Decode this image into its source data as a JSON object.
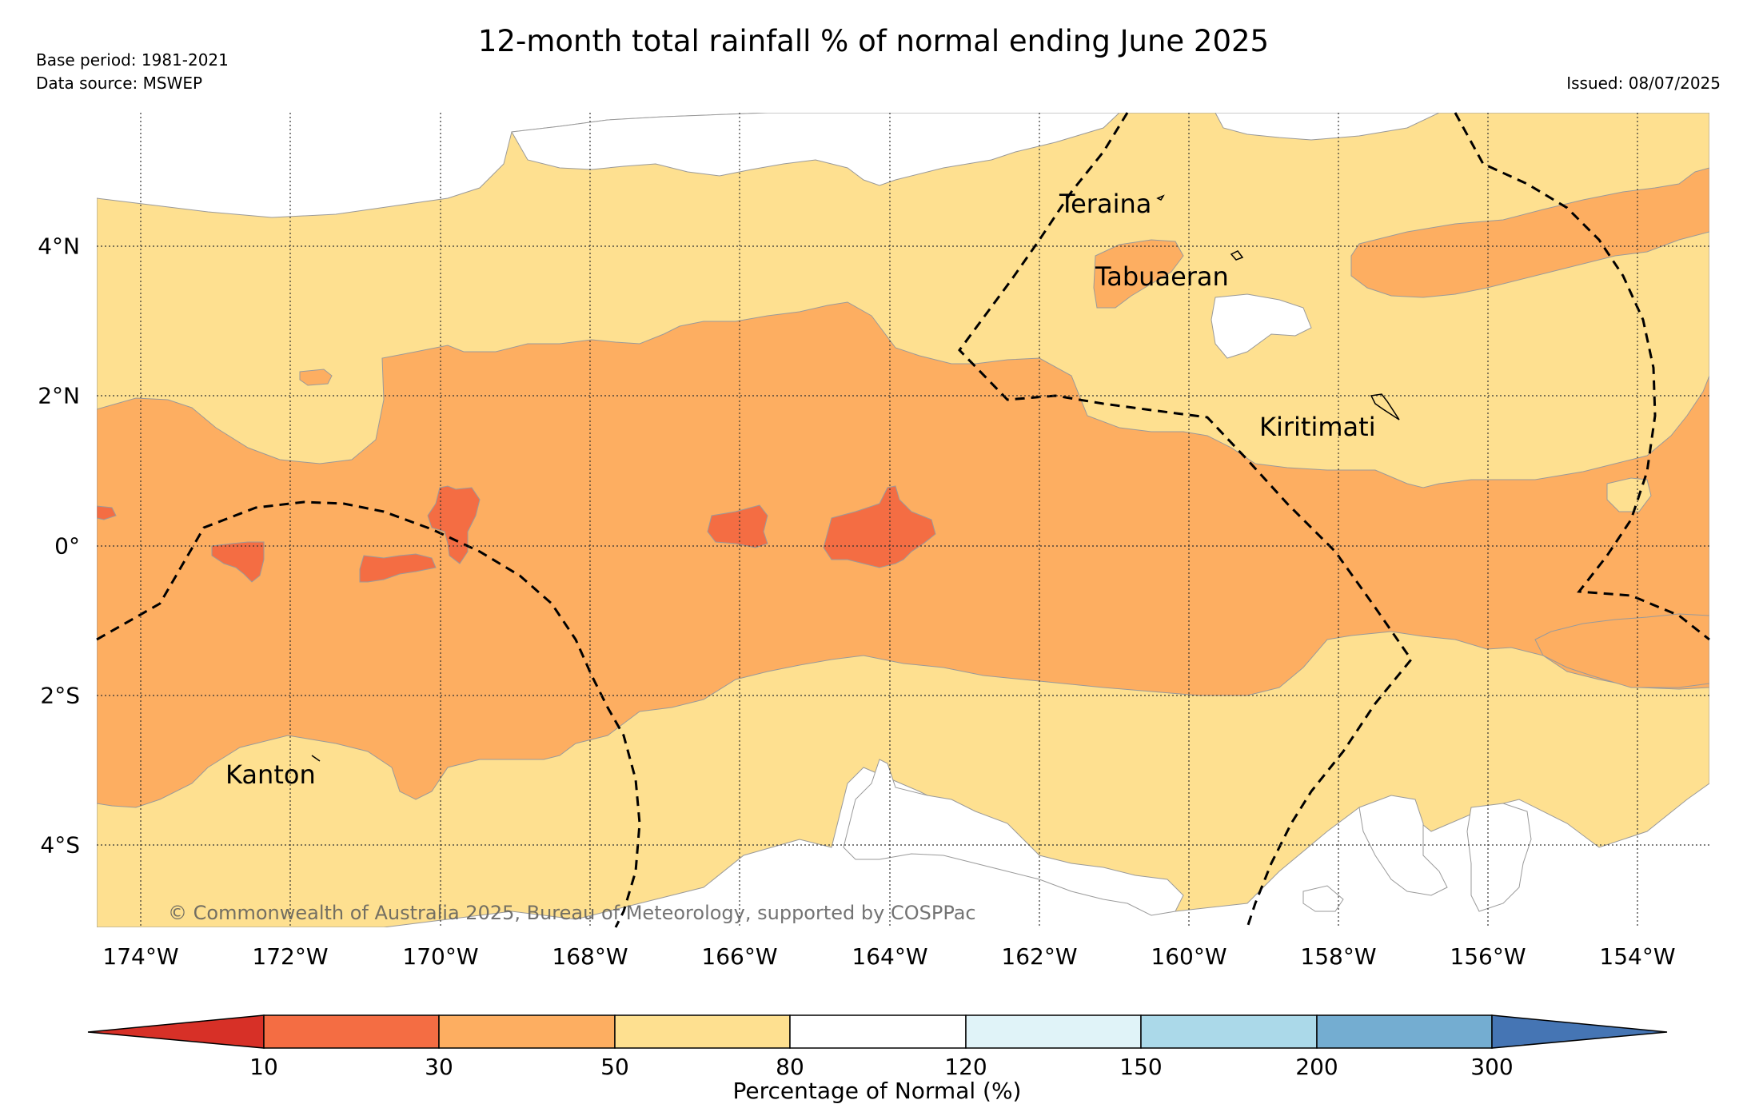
{
  "title": "12-month total rainfall % of normal ending June 2025",
  "base_period": "Base period: 1981-2021",
  "data_source": "Data source: MSWEP",
  "issued": "Issued: 08/07/2025",
  "copyright": "© Commonwealth of Australia 2025, Bureau of Meteorology, supported by COSPPac",
  "x_ticks": [
    "174°W",
    "172°W",
    "170°W",
    "168°W",
    "166°W",
    "164°W",
    "162°W",
    "160°W",
    "158°W",
    "156°W",
    "154°W"
  ],
  "y_ticks": [
    "4°N",
    "2°N",
    "0°",
    "2°S",
    "4°S"
  ],
  "places": {
    "teraina": "Teraina",
    "tabuaeran": "Tabuaeran",
    "kiritimati": "Kiritimati",
    "kanton": "Kanton"
  },
  "colorbar": {
    "label": "Percentage of Normal (%)",
    "ticks": [
      "10",
      "30",
      "50",
      "80",
      "120",
      "150",
      "200",
      "300"
    ],
    "colors": {
      "under": "#d73027",
      "c10_30": "#f46d43",
      "c30_50": "#fdae61",
      "c50_80": "#fee090",
      "c80_120": "#ffffff",
      "c120_150": "#e0f3f8",
      "c150_200": "#abd9e9",
      "c200_300": "#74add1",
      "over": "#4575b4"
    }
  }
}
